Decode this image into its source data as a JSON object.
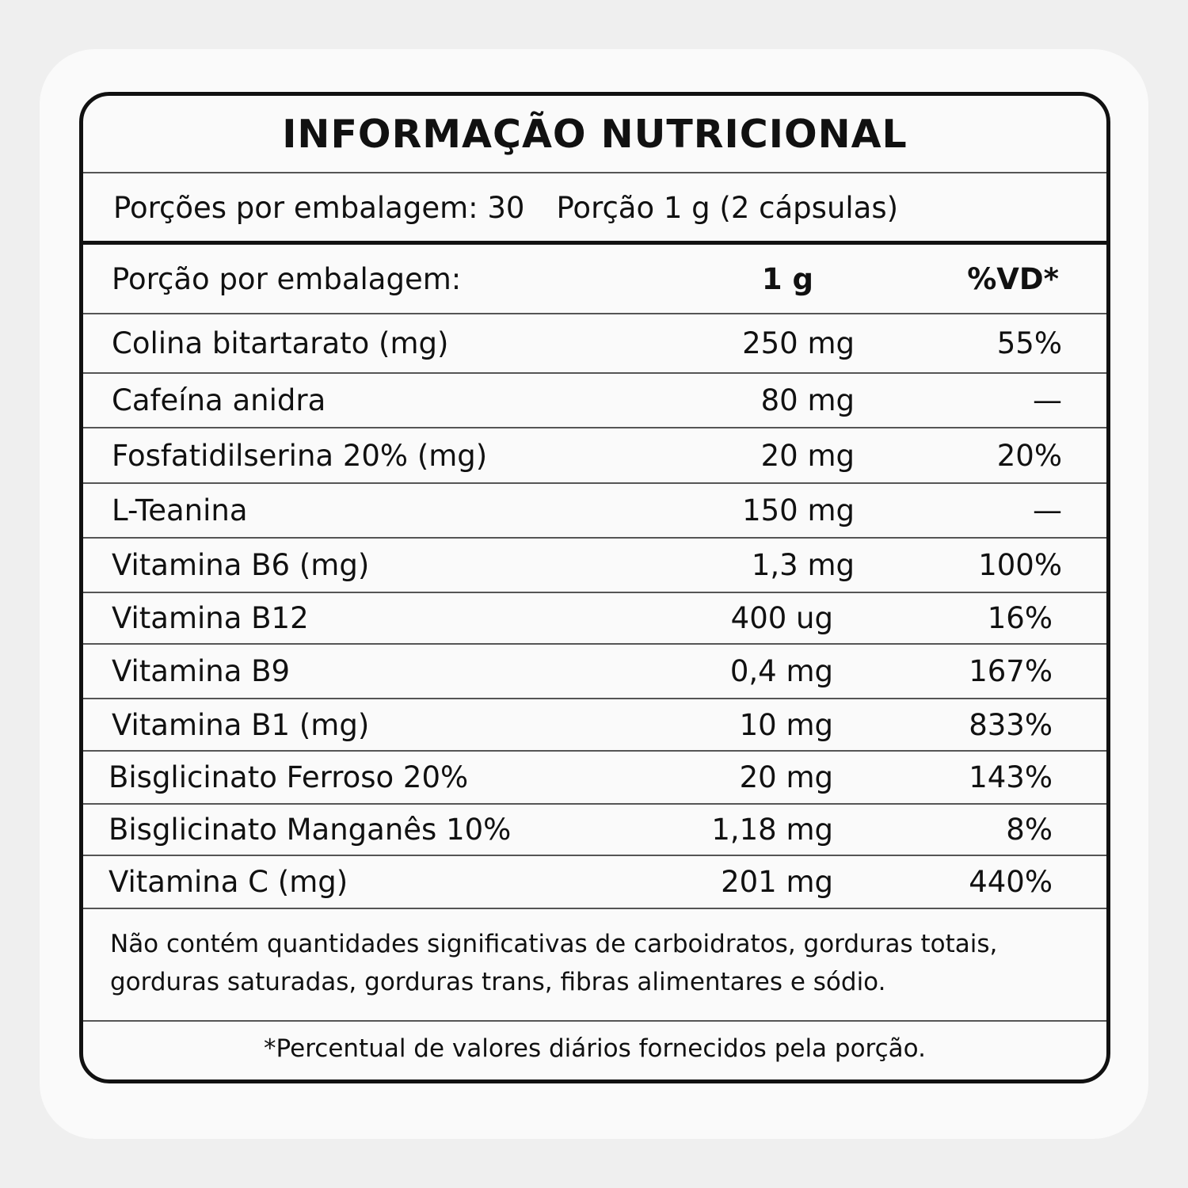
{
  "title": "INFORMAÇÃO NUTRICIONAL",
  "servings": {
    "per_package": "Porções por embalagem: 30",
    "portion": "Porção 1 g (2 cápsulas)"
  },
  "header": {
    "label": "Porção por embalagem:",
    "amount": "1 g",
    "vd": "%VD*"
  },
  "rows": [
    {
      "name": "Colina bitartarato (mg)",
      "amount": "250 mg",
      "vd": "55%"
    },
    {
      "name": "Cafeína anidra",
      "amount": "80 mg",
      "vd": "—"
    },
    {
      "name": "Fosfatidilserina 20% (mg)",
      "amount": "20 mg",
      "vd": "20%"
    },
    {
      "name": "L-Teanina",
      "amount": "150 mg",
      "vd": "—"
    },
    {
      "name": "Vitamina B6 (mg)",
      "amount": "1,3 mg",
      "vd": "100%"
    },
    {
      "name": "Vitamina B12",
      "amount": "400 ug",
      "vd": "16%"
    },
    {
      "name": "Vitamina B9",
      "amount": "0,4 mg",
      "vd": "167%"
    },
    {
      "name": "Vitamina B1 (mg)",
      "amount": "10 mg",
      "vd": "833%"
    },
    {
      "name": "Bisglicinato Ferroso 20%",
      "amount": "20 mg",
      "vd": "143%"
    },
    {
      "name": "Bisglicinato Manganês 10%",
      "amount": "1,18 mg",
      "vd": "8%"
    },
    {
      "name": "Vitamina C (mg)",
      "amount": "201 mg",
      "vd": "440%"
    }
  ],
  "note": "Não contém quantidades significativas de carboidratos, gorduras totais, gorduras saturadas, gorduras trans, fibras alimentares e sódio.",
  "footnote": "*Percentual de valores diários fornecidos pela porção."
}
